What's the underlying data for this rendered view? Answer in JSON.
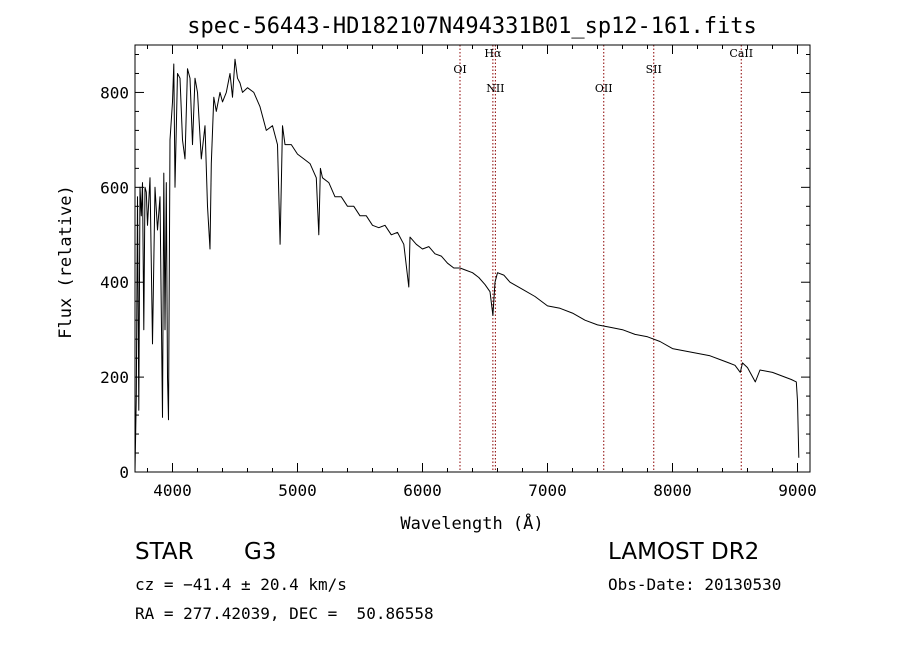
{
  "chart_data": {
    "type": "line",
    "title": "spec-56443-HD182107N494331B01_sp12-161.fits",
    "xlabel": "Wavelength (Å)",
    "ylabel": "Flux (relative)",
    "xlim": [
      3700,
      9100
    ],
    "ylim": [
      0,
      900
    ],
    "x_ticks": [
      4000,
      5000,
      6000,
      7000,
      8000,
      9000
    ],
    "y_ticks": [
      0,
      200,
      400,
      600,
      800
    ],
    "grid": false,
    "line_color": "#000000",
    "marker_color": "#8b0000",
    "lines": [
      {
        "label": "OI",
        "wavelength": 6300
      },
      {
        "label": "Hα",
        "wavelength": 6563
      },
      {
        "label": "NII",
        "wavelength": 6583
      },
      {
        "label": "OII",
        "wavelength": 7450
      },
      {
        "label": "SII",
        "wavelength": 7850
      },
      {
        "label": "CaII",
        "wavelength": 8550
      }
    ],
    "series": [
      {
        "x": [
          3700,
          3710,
          3720,
          3730,
          3740,
          3750,
          3760,
          3770,
          3780,
          3790,
          3800,
          3820,
          3840,
          3860,
          3880,
          3900,
          3920,
          3930,
          3940,
          3950,
          3960,
          3968,
          3980,
          4000,
          4010,
          4020,
          4040,
          4060,
          4080,
          4100,
          4120,
          4140,
          4160,
          4180,
          4200,
          4230,
          4260,
          4280,
          4300,
          4310,
          4330,
          4350,
          4380,
          4400,
          4430,
          4460,
          4480,
          4500,
          4520,
          4540,
          4560,
          4600,
          4650,
          4700,
          4750,
          4800,
          4840,
          4861,
          4880,
          4900,
          4950,
          5000,
          5050,
          5100,
          5150,
          5170,
          5183,
          5200,
          5250,
          5300,
          5350,
          5400,
          5450,
          5500,
          5550,
          5600,
          5650,
          5700,
          5750,
          5800,
          5850,
          5890,
          5900,
          5950,
          6000,
          6050,
          6100,
          6150,
          6200,
          6250,
          6300,
          6350,
          6400,
          6450,
          6500,
          6540,
          6563,
          6580,
          6600,
          6650,
          6700,
          6800,
          6900,
          7000,
          7100,
          7200,
          7300,
          7400,
          7500,
          7600,
          7700,
          7800,
          7900,
          8000,
          8100,
          8200,
          8300,
          8400,
          8450,
          8500,
          8542,
          8560,
          8600,
          8662,
          8700,
          8800,
          8900,
          8950,
          8990,
          9000,
          9010
        ],
        "y": [
          0,
          160,
          580,
          130,
          600,
          540,
          610,
          300,
          600,
          590,
          520,
          620,
          270,
          600,
          510,
          580,
          115,
          630,
          300,
          610,
          200,
          110,
          700,
          780,
          860,
          600,
          840,
          830,
          700,
          660,
          850,
          830,
          690,
          830,
          800,
          660,
          730,
          560,
          470,
          650,
          790,
          760,
          800,
          780,
          800,
          840,
          790,
          870,
          830,
          820,
          800,
          810,
          800,
          770,
          720,
          730,
          690,
          480,
          730,
          690,
          690,
          670,
          660,
          650,
          620,
          500,
          640,
          620,
          610,
          580,
          580,
          560,
          560,
          540,
          540,
          520,
          515,
          520,
          500,
          505,
          480,
          390,
          495,
          480,
          470,
          475,
          460,
          455,
          440,
          430,
          430,
          425,
          420,
          410,
          395,
          380,
          330,
          400,
          420,
          415,
          400,
          385,
          370,
          350,
          345,
          335,
          320,
          310,
          305,
          300,
          290,
          285,
          275,
          260,
          255,
          250,
          245,
          235,
          230,
          225,
          210,
          230,
          220,
          190,
          215,
          210,
          200,
          195,
          190,
          150,
          30
        ]
      }
    ]
  },
  "info": {
    "object_class": "STAR",
    "subclass": "G3",
    "catalog": "LAMOST DR2",
    "redshift": "cz = −41.4 ± 20.4 km/s",
    "obs_date": "Obs-Date: 20130530",
    "coords": "RA = 277.42039, DEC =  50.86558"
  }
}
